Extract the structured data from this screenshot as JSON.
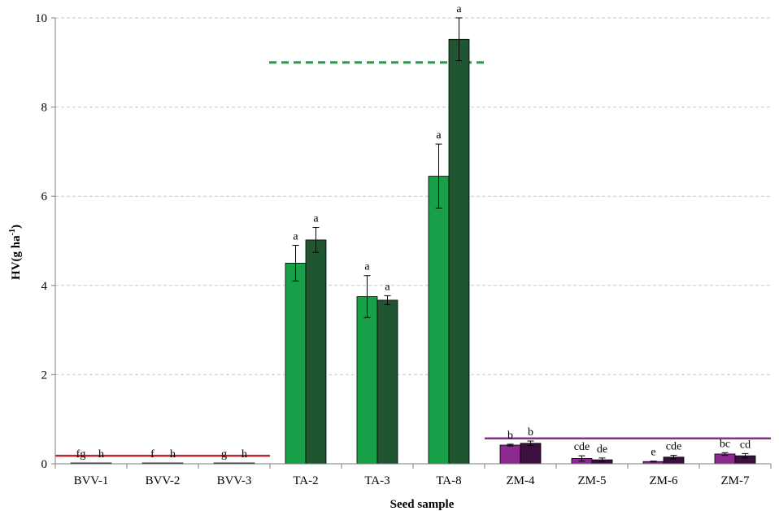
{
  "chart_data": {
    "type": "bar",
    "xlabel": "Seed sample",
    "ylabel": "HV(g ha⁻¹)",
    "ylim": [
      0,
      10
    ],
    "yticks": [
      0,
      2,
      4,
      6,
      8,
      10
    ],
    "grid": true,
    "categories": [
      "BVV-1",
      "BVV-2",
      "BVV-3",
      "TA-2",
      "TA-3",
      "TA-8",
      "ZM-4",
      "ZM-5",
      "ZM-6",
      "ZM-7"
    ],
    "series": [
      {
        "values": [
          0.01,
          0.01,
          0.01,
          4.5,
          3.75,
          6.45,
          0.42,
          0.12,
          0.05,
          0.22
        ],
        "errors": [
          0,
          0,
          0,
          0.4,
          0.47,
          0.72,
          0.02,
          0.06,
          0.01,
          0.03
        ],
        "labels": [
          "fg",
          "f",
          "g",
          "a",
          "a",
          "a",
          "b",
          "cde",
          "e",
          "bc"
        ],
        "colors": [
          "#7f7f7f",
          "#7f7f7f",
          "#7f7f7f",
          "#18a048",
          "#18a048",
          "#18a048",
          "#8b2a8f",
          "#8b2a8f",
          "#8b2a8f",
          "#8b2a8f"
        ]
      },
      {
        "values": [
          0.01,
          0.01,
          0.01,
          5.02,
          3.67,
          9.52,
          0.46,
          0.09,
          0.15,
          0.18
        ],
        "errors": [
          0,
          0,
          0,
          0.28,
          0.1,
          0.48,
          0.05,
          0.04,
          0.04,
          0.05
        ],
        "labels": [
          "h",
          "h",
          "h",
          "a",
          "a",
          "a",
          "b",
          "de",
          "cde",
          "cd"
        ],
        "colors": [
          "#7f7f7f",
          "#7f7f7f",
          "#7f7f7f",
          "#1f5530",
          "#1f5530",
          "#1f5530",
          "#3c0f3f",
          "#3c0f3f",
          "#3c0f3f",
          "#3c0f3f"
        ]
      }
    ],
    "reference_lines": [
      {
        "value": 0.18,
        "from": "BVV-1",
        "to": "BVV-3",
        "color": "#c0282e",
        "style": "solid"
      },
      {
        "value": 9.0,
        "from": "TA-2",
        "to": "TA-8",
        "color": "#1fa043",
        "style": "dashed"
      },
      {
        "value": 0.57,
        "from": "ZM-4",
        "to": "ZM-7",
        "color": "#8b2a8f",
        "style": "solid"
      }
    ]
  }
}
